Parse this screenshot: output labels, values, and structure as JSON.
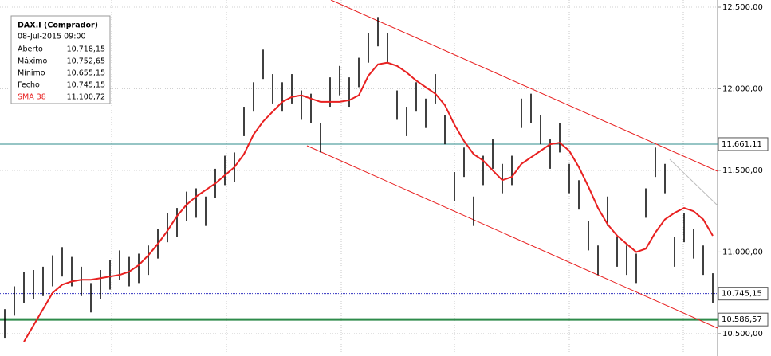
{
  "chart_data": {
    "type": "ohlc",
    "info": {
      "title": "DAX.I (Comprador)",
      "date": "08-Jul-2015 09:00",
      "rows": [
        [
          "Aberto",
          "10.718,15"
        ],
        [
          "Máximo",
          "10.752,65"
        ],
        [
          "Mínimo",
          "10.655,15"
        ],
        [
          "Fecho",
          "10.745,15"
        ],
        [
          "SMA 38",
          "11.100,72"
        ]
      ]
    },
    "ylim": [
      10363,
      12544
    ],
    "yticks": [
      {
        "value": 10500,
        "label": "10.500,00"
      },
      {
        "value": 11000,
        "label": "11.000,00"
      },
      {
        "value": 11500,
        "label": "11.500,00"
      },
      {
        "value": 12000,
        "label": "12.000,00"
      },
      {
        "value": 12500,
        "label": "12.500,00"
      }
    ],
    "levels": [
      {
        "value": 11661.11,
        "label": "11.661,11",
        "color": "#2e8b8b"
      },
      {
        "value": 10745.15,
        "label": "10.745,15",
        "color": "#3030c0"
      },
      {
        "value": 10586.57,
        "label": "10.586,57",
        "color": "#2e8b4a"
      }
    ],
    "bar_color": "#000000",
    "high": [
      10650,
      10790,
      10880,
      10890,
      10910,
      10980,
      11030,
      10970,
      10910,
      10810,
      10890,
      10950,
      11010,
      10970,
      10990,
      11040,
      11140,
      11240,
      11270,
      11370,
      11390,
      11340,
      11510,
      11590,
      11610,
      11890,
      12040,
      12240,
      12090,
      12040,
      12090,
      11990,
      11970,
      11790,
      12070,
      12140,
      12070,
      12190,
      12340,
      12440,
      12340,
      11990,
      11890,
      12040,
      11940,
      12090,
      11840,
      11490,
      11640,
      11340,
      11590,
      11690,
      11540,
      11590,
      11940,
      11970,
      11840,
      11690,
      11790,
      11540,
      11440,
      11190,
      11040,
      11340,
      11090,
      11040,
      10990,
      11390,
      11640,
      11540,
      11090,
      11240,
      11140,
      11040,
      10870
    ],
    "low": [
      10470,
      10610,
      10690,
      10710,
      10730,
      10790,
      10850,
      10790,
      10730,
      10630,
      10710,
      10770,
      10830,
      10790,
      10810,
      10860,
      10960,
      11060,
      11090,
      11190,
      11210,
      11160,
      11330,
      11410,
      11430,
      11710,
      11860,
      12060,
      11910,
      11860,
      11910,
      11810,
      11790,
      11610,
      11890,
      11960,
      11890,
      12010,
      12160,
      12260,
      12160,
      11810,
      11710,
      11860,
      11760,
      11910,
      11660,
      11310,
      11460,
      11160,
      11410,
      11510,
      11360,
      11410,
      11760,
      11790,
      11660,
      11510,
      11610,
      11360,
      11260,
      11010,
      10860,
      11160,
      10910,
      10860,
      10810,
      11210,
      11460,
      11360,
      10910,
      11060,
      10960,
      10860,
      10690
    ],
    "sma": {
      "name": "SMA 38",
      "color": "#e82020",
      "values": [
        null,
        null,
        10450,
        10550,
        10650,
        10750,
        10800,
        10820,
        10830,
        10830,
        10840,
        10850,
        10860,
        10880,
        10920,
        10980,
        11050,
        11130,
        11220,
        11290,
        11340,
        11380,
        11420,
        11470,
        11520,
        11600,
        11720,
        11800,
        11860,
        11920,
        11950,
        11960,
        11940,
        11920,
        11920,
        11920,
        11930,
        11960,
        12080,
        12150,
        12160,
        12140,
        12100,
        12050,
        12010,
        11970,
        11900,
        11780,
        11680,
        11600,
        11560,
        11500,
        11440,
        11460,
        11540,
        11580,
        11620,
        11660,
        11670,
        11620,
        11520,
        11400,
        11270,
        11170,
        11100,
        11050,
        11000,
        11020,
        11120,
        11200,
        11240,
        11270,
        11250,
        11200,
        11100
      ]
    }
  }
}
